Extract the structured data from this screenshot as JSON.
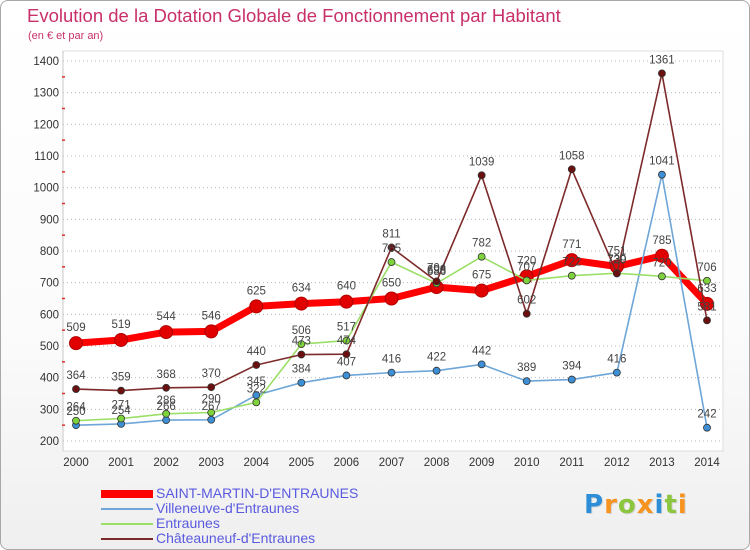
{
  "chart_data": {
    "type": "line",
    "title": "Evolution de la Dotation Globale de Fonctionnement par Habitant",
    "subtitle": "(en € et par an)",
    "xlabel": "",
    "ylabel": "",
    "categories": [
      "2000",
      "2001",
      "2002",
      "2003",
      "2004",
      "2005",
      "2006",
      "2007",
      "2008",
      "2009",
      "2010",
      "2011",
      "2012",
      "2013",
      "2014"
    ],
    "ylim": [
      200,
      1400
    ],
    "yticks": [
      200,
      300,
      400,
      500,
      600,
      700,
      800,
      900,
      1000,
      1100,
      1200,
      1300,
      1400
    ],
    "grid": true,
    "legend": "bottom-left",
    "series": [
      {
        "name": "SAINT-MARTIN-D'ENTRAUNES",
        "color": "#ff0000",
        "marker": "#e00000",
        "values": [
          509,
          519,
          544,
          546,
          625,
          634,
          640,
          650,
          686,
          675,
          720,
          771,
          751,
          785,
          633
        ]
      },
      {
        "name": "Villeneuve-d'Entraunes",
        "color": "#6ea6d8",
        "marker": "#3d8fd6",
        "values": [
          250,
          254,
          266,
          267,
          345,
          384,
          407,
          416,
          422,
          442,
          389,
          394,
          416,
          1041,
          242
        ]
      },
      {
        "name": "Entraunes",
        "color": "#9adf66",
        "marker": "#7ed23c",
        "values": [
          264,
          271,
          286,
          290,
          322,
          506,
          517,
          765,
          698,
          782,
          707,
          722,
          730,
          720,
          706
        ]
      },
      {
        "name": "Châteauneuf-d'Entraunes",
        "color": "#7d2a2a",
        "marker": "#6b0f0f",
        "values": [
          364,
          359,
          368,
          370,
          440,
          473,
          474,
          811,
          704,
          1039,
          602,
          1058,
          729,
          1361,
          581
        ]
      }
    ]
  },
  "logo": {
    "text": "Proxiti",
    "colors": [
      "#2b8ed6",
      "#f7931e",
      "#8cc63f",
      "#f7931e",
      "#2b8ed6",
      "#8cc63f",
      "#f7931e"
    ]
  }
}
